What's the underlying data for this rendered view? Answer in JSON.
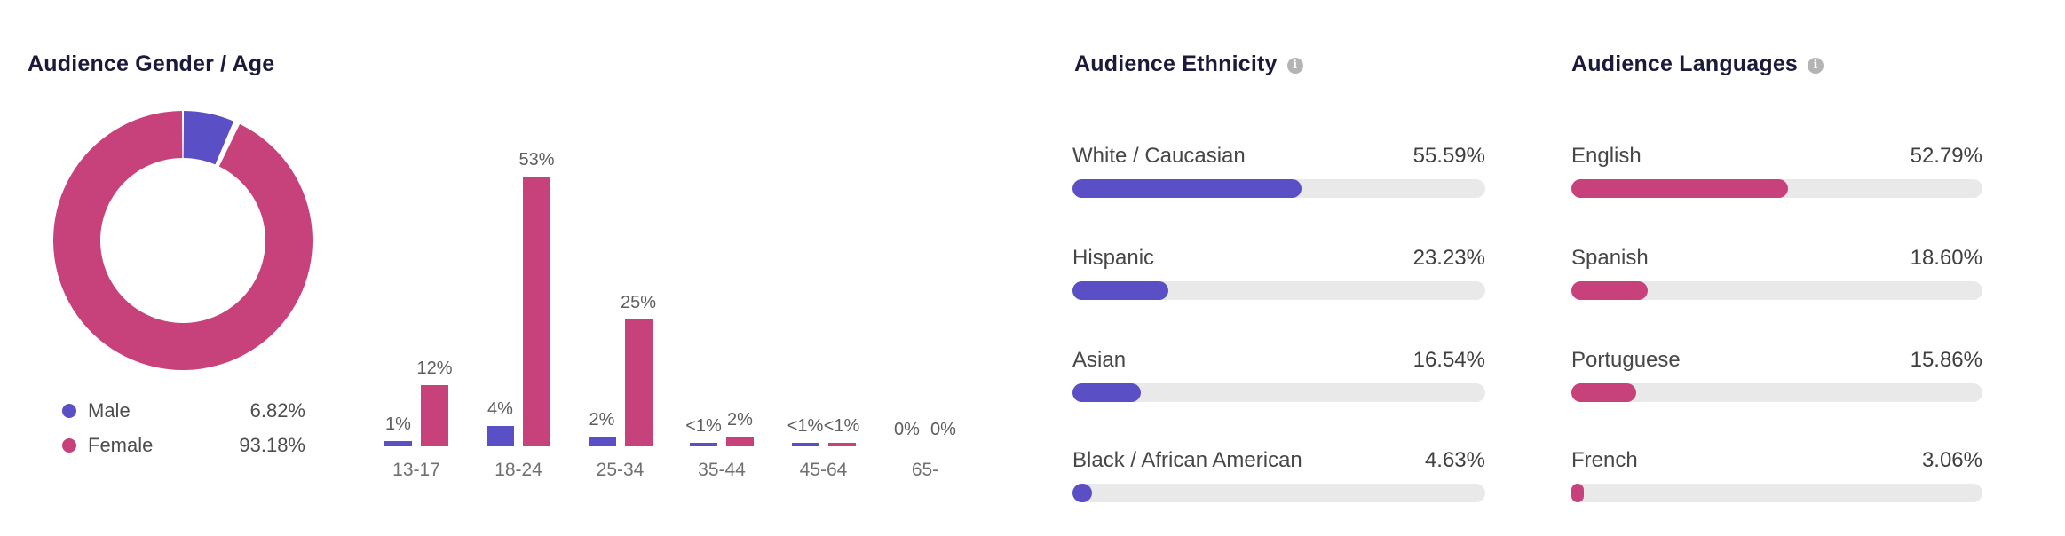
{
  "colors": {
    "male_purple": "#5B4FC5",
    "female_pink": "#C7417B",
    "track_gray": "#e9e9e9",
    "title_navy": "#1b1a3a",
    "row_text_gray": "#474747",
    "bar_label_gray": "#5d5d5d",
    "axis_label_gray": "#707070",
    "info_icon_gray": "#b4b4b4"
  },
  "gender_age": {
    "title": "Audience Gender / Age",
    "legend": [
      {
        "label": "Male",
        "value": "6.82%",
        "color": "#5B4FC5"
      },
      {
        "label": "Female",
        "value": "93.18%",
        "color": "#C7417B"
      }
    ]
  },
  "ethnicity": {
    "title": "Audience Ethnicity",
    "info_icon": "i"
  },
  "languages": {
    "title": "Audience Languages",
    "info_icon": "i"
  },
  "chart_data": [
    {
      "type": "pie",
      "subtype": "donut",
      "title": "Audience Gender / Age",
      "labels": [
        "Male",
        "Female"
      ],
      "values": [
        6.82,
        93.18
      ],
      "value_labels": [
        "6.82%",
        "93.18%"
      ],
      "colors": [
        "#5B4FC5",
        "#C7417B"
      ],
      "legend_position": "bottom-left",
      "start_angle_deg": 0,
      "direction": "clockwise"
    },
    {
      "type": "bar",
      "title": "Audience age distribution by gender",
      "categories": [
        "13-17",
        "18-24",
        "25-34",
        "35-44",
        "45-64",
        "65-"
      ],
      "series": [
        {
          "name": "Male",
          "color": "#5B4FC5",
          "values": [
            1,
            4,
            2,
            0.5,
            0.5,
            0
          ],
          "display": [
            "1%",
            "4%",
            "2%",
            "<1%",
            "<1%",
            "0%"
          ]
        },
        {
          "name": "Female",
          "color": "#C7417B",
          "values": [
            12,
            53,
            25,
            2,
            0.5,
            0
          ],
          "display": [
            "12%",
            "53%",
            "25%",
            "2%",
            "<1%",
            "0%"
          ]
        }
      ],
      "ylim": [
        0,
        53
      ],
      "grid": false,
      "value_labels_shown": true
    },
    {
      "type": "bar",
      "orientation": "horizontal",
      "title": "Audience Ethnicity",
      "categories": [
        "White / Caucasian",
        "Hispanic",
        "Asian",
        "Black / African American"
      ],
      "values": [
        55.59,
        23.23,
        16.54,
        4.63
      ],
      "value_labels": [
        "55.59%",
        "23.23%",
        "16.54%",
        "4.63%"
      ],
      "bar_color": "#5B4FC5",
      "xlim": [
        0,
        100
      ]
    },
    {
      "type": "bar",
      "orientation": "horizontal",
      "title": "Audience Languages",
      "categories": [
        "English",
        "Spanish",
        "Portuguese",
        "French"
      ],
      "values": [
        52.79,
        18.6,
        15.86,
        3.06
      ],
      "value_labels": [
        "52.79%",
        "18.60%",
        "15.86%",
        "3.06%"
      ],
      "bar_color": "#C7417B",
      "xlim": [
        0,
        100
      ]
    }
  ]
}
